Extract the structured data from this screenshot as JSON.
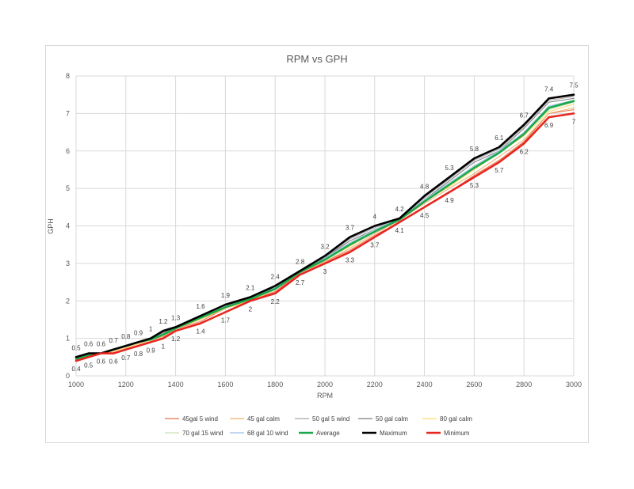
{
  "chart_data": {
    "type": "line",
    "title": "RPM vs GPH",
    "xlabel": "RPM",
    "ylabel": "GPH",
    "xlim": [
      1000,
      3000
    ],
    "ylim": [
      0,
      8
    ],
    "x_ticks": [
      "1000",
      "1200",
      "1400",
      "1600",
      "1800",
      "2000",
      "2200",
      "2400",
      "2600",
      "2800",
      "3000"
    ],
    "y_ticks": [
      "0",
      "1",
      "2",
      "3",
      "4",
      "5",
      "6",
      "7",
      "8"
    ],
    "grid": true,
    "legend_position": "bottom",
    "x": [
      1000,
      1050,
      1100,
      1150,
      1200,
      1250,
      1300,
      1350,
      1400,
      1500,
      1600,
      1700,
      1800,
      1900,
      2000,
      2100,
      2200,
      2300,
      2400,
      2500,
      2600,
      2700,
      2800,
      2900,
      3000
    ],
    "series": [
      {
        "name": "45gal 5 wind",
        "color": "#e8704a",
        "width": 1,
        "values": [
          0.4,
          0.55,
          0.6,
          0.65,
          0.75,
          0.85,
          0.95,
          1.05,
          1.25,
          1.45,
          1.8,
          2.0,
          2.25,
          2.75,
          3.05,
          3.35,
          3.75,
          4.1,
          4.5,
          4.9,
          5.35,
          5.75,
          6.25,
          7.0,
          7.1
        ]
      },
      {
        "name": "45 gal calm",
        "color": "#f0b070",
        "width": 1,
        "values": [
          0.45,
          0.55,
          0.6,
          0.7,
          0.8,
          0.9,
          0.95,
          1.05,
          1.25,
          1.5,
          1.8,
          2.0,
          2.3,
          2.75,
          3.05,
          3.4,
          3.8,
          4.15,
          4.6,
          5.0,
          5.4,
          5.85,
          6.3,
          7.0,
          7.15
        ]
      },
      {
        "name": "50 gal 5 wind",
        "color": "#a6a6a6",
        "width": 1,
        "values": [
          0.5,
          0.6,
          0.6,
          0.7,
          0.8,
          0.9,
          1.0,
          1.15,
          1.3,
          1.6,
          1.9,
          2.1,
          2.35,
          2.8,
          3.15,
          3.65,
          3.95,
          4.2,
          4.75,
          5.25,
          5.75,
          6.05,
          6.65,
          7.35,
          7.45
        ]
      },
      {
        "name": "50 gal calm",
        "color": "#7f7f7f",
        "width": 1,
        "values": [
          0.5,
          0.6,
          0.6,
          0.7,
          0.8,
          0.9,
          1.0,
          1.15,
          1.3,
          1.55,
          1.85,
          2.1,
          2.35,
          2.8,
          3.15,
          3.6,
          3.9,
          4.2,
          4.7,
          5.2,
          5.7,
          6.0,
          6.6,
          7.3,
          7.4
        ]
      },
      {
        "name": "80 gal calm",
        "color": "#ffd966",
        "width": 1,
        "values": [
          0.45,
          0.55,
          0.6,
          0.65,
          0.75,
          0.85,
          0.95,
          1.1,
          1.25,
          1.5,
          1.8,
          2.0,
          2.3,
          2.75,
          3.1,
          3.45,
          3.85,
          4.15,
          4.65,
          5.05,
          5.5,
          5.95,
          6.4,
          7.05,
          7.25
        ]
      },
      {
        "name": "70 gal 15 wind",
        "color": "#c9e0b8",
        "width": 1,
        "values": [
          0.45,
          0.55,
          0.6,
          0.7,
          0.8,
          0.9,
          0.95,
          1.1,
          1.3,
          1.55,
          1.85,
          2.05,
          2.3,
          2.8,
          3.1,
          3.5,
          3.85,
          4.2,
          4.7,
          5.1,
          5.55,
          5.95,
          6.45,
          7.1,
          7.3
        ]
      },
      {
        "name": "68 gal 10 wind",
        "color": "#9dc3e6",
        "width": 1,
        "values": [
          0.45,
          0.55,
          0.6,
          0.7,
          0.8,
          0.9,
          1.0,
          1.1,
          1.3,
          1.55,
          1.85,
          2.05,
          2.35,
          2.8,
          3.15,
          3.55,
          3.9,
          4.2,
          4.7,
          5.15,
          5.6,
          6.0,
          6.5,
          7.2,
          7.35
        ]
      },
      {
        "name": "Average",
        "color": "#1aa84b",
        "width": 2.6,
        "values": [
          0.45,
          0.55,
          0.6,
          0.7,
          0.8,
          0.9,
          0.97,
          1.1,
          1.27,
          1.55,
          1.83,
          2.05,
          2.32,
          2.77,
          3.1,
          3.5,
          3.85,
          4.17,
          4.65,
          5.1,
          5.55,
          5.95,
          6.45,
          7.15,
          7.33
        ]
      },
      {
        "name": "Maximum",
        "color": "#000000",
        "width": 2.6,
        "values": [
          0.5,
          0.6,
          0.6,
          0.7,
          0.8,
          0.9,
          1.0,
          1.2,
          1.3,
          1.6,
          1.9,
          2.1,
          2.4,
          2.8,
          3.2,
          3.7,
          4.0,
          4.2,
          4.8,
          5.3,
          5.8,
          6.1,
          6.7,
          7.4,
          7.5
        ]
      },
      {
        "name": "Minimum",
        "color": "#e8261e",
        "width": 2.6,
        "values": [
          0.4,
          0.5,
          0.6,
          0.6,
          0.7,
          0.8,
          0.9,
          1.0,
          1.2,
          1.4,
          1.7,
          2.0,
          2.2,
          2.7,
          3.0,
          3.3,
          3.7,
          4.1,
          4.5,
          4.9,
          5.3,
          5.7,
          6.2,
          6.9,
          7.0
        ]
      }
    ],
    "data_labels": {
      "Maximum": {
        "position": "above",
        "labels": [
          "0.5",
          "0.6",
          "0.6",
          "0.7",
          "0.8",
          "0.9",
          "1",
          "1.2",
          "1.3",
          "1.6",
          "1.9",
          "2.1",
          "2.4",
          "2.8",
          "3.2",
          "3.7",
          "4",
          "4.2",
          "4.8",
          "5.3",
          "5.8",
          "6.1",
          "6.7",
          "7.4",
          "7.5"
        ]
      },
      "Minimum": {
        "position": "below",
        "labels": [
          "0.4",
          "0.5",
          "0.6",
          "0.6",
          "0.7",
          "0.8",
          "0.9",
          "1",
          "1.2",
          "1.4",
          "1.7",
          "2",
          "2.2",
          "2.7",
          "3",
          "3.3",
          "3.7",
          "4.1",
          "4.5",
          "4.9",
          "5.3",
          "5.7",
          "6.2",
          "6.9",
          "7"
        ]
      }
    }
  }
}
